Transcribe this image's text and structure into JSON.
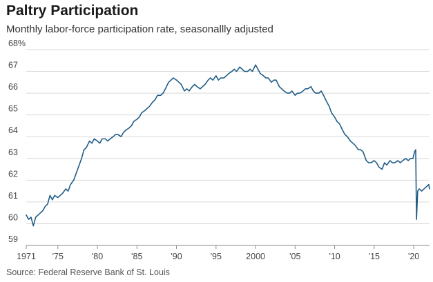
{
  "chart_data": {
    "type": "line",
    "title": "Paltry Participation",
    "subtitle": "Monthly labor-force participation rate, seasonallly adjusted",
    "source": "Source: Federal Reserve Bank of St. Louis",
    "xlabel": "",
    "ylabel": "",
    "xlim": [
      1971,
      2022
    ],
    "ylim": [
      59,
      68
    ],
    "y_ticks": [
      {
        "value": 68,
        "label": "68%"
      },
      {
        "value": 67,
        "label": "67"
      },
      {
        "value": 66,
        "label": "66"
      },
      {
        "value": 65,
        "label": "65"
      },
      {
        "value": 64,
        "label": "64"
      },
      {
        "value": 63,
        "label": "63"
      },
      {
        "value": 62,
        "label": "62"
      },
      {
        "value": 61,
        "label": "61"
      },
      {
        "value": 60,
        "label": "60"
      },
      {
        "value": 59,
        "label": "59"
      }
    ],
    "x_ticks": [
      {
        "value": 1971,
        "label": "1971"
      },
      {
        "value": 1975,
        "label": "'75"
      },
      {
        "value": 1980,
        "label": "'80"
      },
      {
        "value": 1985,
        "label": "'85"
      },
      {
        "value": 1990,
        "label": "'90"
      },
      {
        "value": 1995,
        "label": "'95"
      },
      {
        "value": 2000,
        "label": "2000"
      },
      {
        "value": 2005,
        "label": "'05"
      },
      {
        "value": 2010,
        "label": "'10"
      },
      {
        "value": 2015,
        "label": "'15"
      },
      {
        "value": 2020,
        "label": "'20"
      }
    ],
    "grid": true,
    "line_color": "#1f5c85",
    "series": [
      {
        "x": [
          1971.0,
          1971.3,
          1971.6,
          1971.9,
          1972.2,
          1972.5,
          1972.8,
          1973.1,
          1973.4,
          1973.7,
          1974.0,
          1974.3,
          1974.6,
          1975.0,
          1975.3,
          1975.6,
          1976.0,
          1976.3,
          1976.6,
          1977.0,
          1977.3,
          1977.6,
          1978.0,
          1978.3,
          1978.6,
          1979.0,
          1979.3,
          1979.6,
          1980.0,
          1980.3,
          1980.6,
          1981.0,
          1981.3,
          1981.6,
          1982.0,
          1982.3,
          1982.6,
          1983.0,
          1983.3,
          1983.6,
          1984.0,
          1984.3,
          1984.6,
          1985.0,
          1985.3,
          1985.6,
          1986.0,
          1986.3,
          1986.6,
          1987.0,
          1987.3,
          1987.6,
          1988.0,
          1988.3,
          1988.6,
          1989.0,
          1989.3,
          1989.6,
          1990.0,
          1990.3,
          1990.6,
          1991.0,
          1991.3,
          1991.6,
          1992.0,
          1992.3,
          1992.6,
          1993.0,
          1993.3,
          1993.6,
          1994.0,
          1994.3,
          1994.6,
          1995.0,
          1995.3,
          1995.6,
          1996.0,
          1996.3,
          1996.6,
          1997.0,
          1997.3,
          1997.6,
          1998.0,
          1998.3,
          1998.6,
          1999.0,
          1999.3,
          1999.6,
          2000.0,
          2000.3,
          2000.6,
          2001.0,
          2001.3,
          2001.6,
          2002.0,
          2002.3,
          2002.6,
          2003.0,
          2003.3,
          2003.6,
          2004.0,
          2004.3,
          2004.6,
          2005.0,
          2005.3,
          2005.6,
          2006.0,
          2006.3,
          2006.6,
          2007.0,
          2007.3,
          2007.6,
          2008.0,
          2008.3,
          2008.6,
          2009.0,
          2009.3,
          2009.6,
          2010.0,
          2010.3,
          2010.6,
          2011.0,
          2011.3,
          2011.6,
          2012.0,
          2012.3,
          2012.6,
          2013.0,
          2013.3,
          2013.6,
          2014.0,
          2014.3,
          2014.6,
          2015.0,
          2015.3,
          2015.6,
          2016.0,
          2016.3,
          2016.6,
          2017.0,
          2017.3,
          2017.6,
          2018.0,
          2018.3,
          2018.6,
          2019.0,
          2019.3,
          2019.6,
          2019.9,
          2020.1,
          2020.25,
          2020.35,
          2020.5,
          2020.7,
          2021.0,
          2021.3,
          2021.6,
          2021.9,
          2022.0
        ],
        "values": [
          60.4,
          60.2,
          60.3,
          59.9,
          60.3,
          60.4,
          60.5,
          60.6,
          60.8,
          60.9,
          61.3,
          61.1,
          61.3,
          61.2,
          61.3,
          61.4,
          61.6,
          61.5,
          61.8,
          62.0,
          62.3,
          62.6,
          63.0,
          63.4,
          63.5,
          63.8,
          63.7,
          63.9,
          63.8,
          63.7,
          63.9,
          63.9,
          63.8,
          63.9,
          64.0,
          64.1,
          64.1,
          64.0,
          64.2,
          64.3,
          64.4,
          64.5,
          64.7,
          64.8,
          64.9,
          65.1,
          65.2,
          65.3,
          65.4,
          65.6,
          65.7,
          65.9,
          65.9,
          66.0,
          66.2,
          66.5,
          66.6,
          66.7,
          66.6,
          66.5,
          66.4,
          66.1,
          66.2,
          66.1,
          66.3,
          66.4,
          66.3,
          66.2,
          66.3,
          66.4,
          66.6,
          66.7,
          66.6,
          66.8,
          66.6,
          66.7,
          66.7,
          66.8,
          66.9,
          67.0,
          67.1,
          67.0,
          67.2,
          67.1,
          67.0,
          67.0,
          67.1,
          67.0,
          67.3,
          67.1,
          66.9,
          66.8,
          66.7,
          66.7,
          66.5,
          66.6,
          66.6,
          66.3,
          66.2,
          66.1,
          66.0,
          66.0,
          66.1,
          65.9,
          66.0,
          66.0,
          66.1,
          66.2,
          66.2,
          66.3,
          66.1,
          66.0,
          66.0,
          66.1,
          65.9,
          65.6,
          65.4,
          65.1,
          64.9,
          64.7,
          64.6,
          64.3,
          64.1,
          64.0,
          63.8,
          63.7,
          63.6,
          63.4,
          63.4,
          63.3,
          62.9,
          62.8,
          62.8,
          62.9,
          62.8,
          62.6,
          62.5,
          62.8,
          62.7,
          62.9,
          62.8,
          62.8,
          62.9,
          62.8,
          62.9,
          63.0,
          62.9,
          63.0,
          63.0,
          63.3,
          63.4,
          60.2,
          61.5,
          61.6,
          61.5,
          61.6,
          61.7,
          61.8,
          61.6
        ]
      }
    ]
  }
}
